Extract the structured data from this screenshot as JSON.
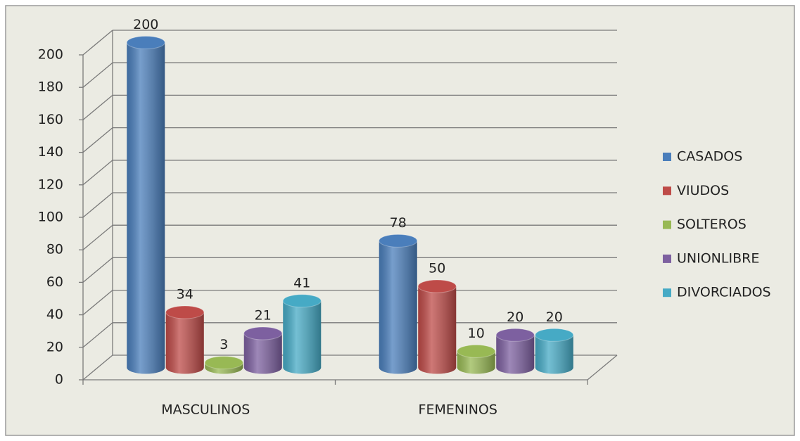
{
  "chart_data": {
    "type": "bar3d",
    "categories": [
      "MASCULINOS",
      "FEMENINOS"
    ],
    "series": [
      {
        "name": "CASADOS",
        "color": "#4a7ebb",
        "values": [
          200,
          78
        ]
      },
      {
        "name": "VIUDOS",
        "color": "#be4b48",
        "values": [
          34,
          50
        ]
      },
      {
        "name": "SOLTEROS",
        "color": "#98b954",
        "values": [
          3,
          10
        ]
      },
      {
        "name": "UNIONLIBRE",
        "color": "#7d60a0",
        "values": [
          21,
          20
        ]
      },
      {
        "name": "DIVORCIADOS",
        "color": "#46aac5",
        "values": [
          41,
          20
        ]
      }
    ],
    "ylim": [
      0,
      200
    ],
    "yticks": [
      0,
      20,
      40,
      60,
      80,
      100,
      120,
      140,
      160,
      180,
      200
    ],
    "grid": true,
    "legend": "right"
  }
}
